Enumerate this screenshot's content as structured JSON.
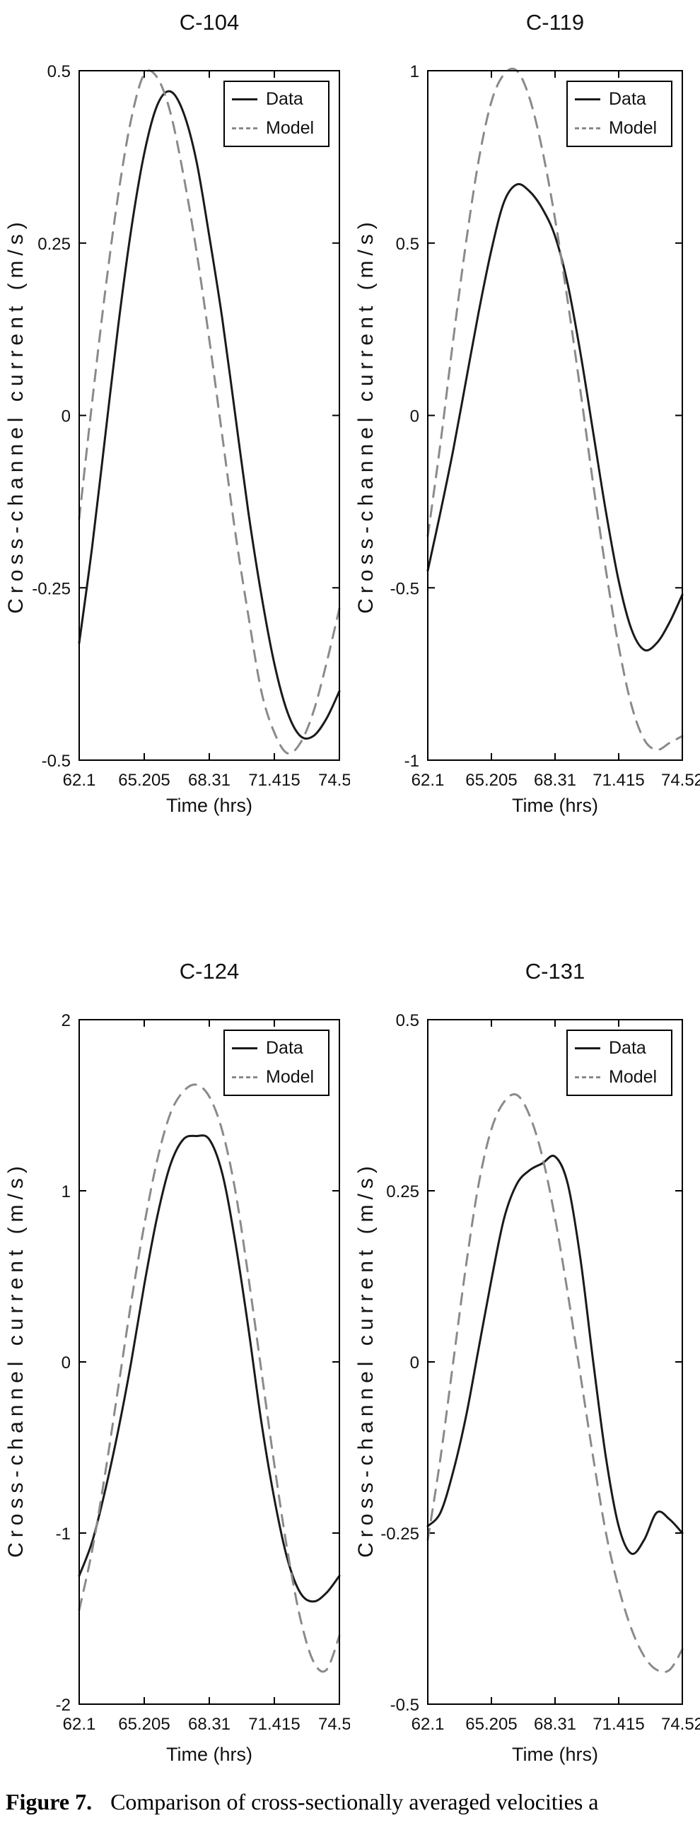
{
  "caption": {
    "label": "Figure 7.",
    "text": "Comparison of cross-sectionally averaged velocities a"
  },
  "legend": {
    "entries": [
      "Data",
      "Model"
    ],
    "position": "top-right"
  },
  "colors": {
    "data_line": "#1a1a1a",
    "model_line": "#8a8a8a",
    "axis": "#000000"
  },
  "chart_data": [
    {
      "type": "line",
      "title": "C-104",
      "xlabel": "Time (hrs)",
      "ylabel": "Cross-channel current (m/s)",
      "xlim": [
        62.1,
        74.52
      ],
      "ylim": [
        -0.5,
        0.5
      ],
      "xticks": [
        62.1,
        65.205,
        68.31,
        71.415,
        74.52
      ],
      "xtick_labels": [
        "62.1",
        "65.205",
        "68.31",
        "71.415",
        "74.52"
      ],
      "yticks": [
        -0.5,
        -0.25,
        0,
        0.25,
        0.5
      ],
      "ytick_labels": [
        "-0.5",
        "-0.25",
        "0",
        "0.25",
        "0.5"
      ],
      "grid": false,
      "legend_position": "top-right",
      "x": [
        62.1,
        62.721,
        63.342,
        63.963,
        64.584,
        65.205,
        65.826,
        66.447,
        67.068,
        67.689,
        68.31,
        68.931,
        69.552,
        70.173,
        70.794,
        71.415,
        72.036,
        72.657,
        73.278,
        73.899,
        74.52
      ],
      "series": [
        {
          "name": "Data",
          "style": "solid",
          "color": "#1a1a1a",
          "values": [
            -0.33,
            -0.19,
            -0.03,
            0.13,
            0.27,
            0.38,
            0.45,
            0.47,
            0.44,
            0.37,
            0.26,
            0.14,
            0.0,
            -0.14,
            -0.26,
            -0.36,
            -0.43,
            -0.465,
            -0.465,
            -0.44,
            -0.4
          ]
        },
        {
          "name": "Model",
          "style": "dashed",
          "color": "#8a8a8a",
          "values": [
            -0.15,
            0.02,
            0.18,
            0.32,
            0.43,
            0.495,
            0.49,
            0.44,
            0.35,
            0.24,
            0.11,
            -0.03,
            -0.17,
            -0.29,
            -0.4,
            -0.46,
            -0.49,
            -0.475,
            -0.43,
            -0.36,
            -0.28
          ]
        }
      ]
    },
    {
      "type": "line",
      "title": "C-119",
      "xlabel": "Time (hrs)",
      "ylabel": "Cross-channel current (m/s)",
      "xlim": [
        62.1,
        74.52
      ],
      "ylim": [
        -1,
        1
      ],
      "xticks": [
        62.1,
        65.205,
        68.31,
        71.415,
        74.52
      ],
      "xtick_labels": [
        "62.1",
        "65.205",
        "68.31",
        "71.415",
        "74.52"
      ],
      "yticks": [
        -1,
        -0.5,
        0,
        0.5,
        1
      ],
      "ytick_labels": [
        "-1",
        "-0.5",
        "0",
        "0.5",
        "1"
      ],
      "grid": false,
      "legend_position": "top-right",
      "x": [
        62.1,
        62.721,
        63.342,
        63.963,
        64.584,
        65.205,
        65.826,
        66.447,
        67.068,
        67.689,
        68.31,
        68.931,
        69.552,
        70.173,
        70.794,
        71.415,
        72.036,
        72.657,
        73.278,
        73.899,
        74.52
      ],
      "series": [
        {
          "name": "Data",
          "style": "solid",
          "color": "#1a1a1a",
          "values": [
            -0.45,
            -0.28,
            -0.1,
            0.1,
            0.3,
            0.48,
            0.62,
            0.67,
            0.65,
            0.6,
            0.52,
            0.38,
            0.18,
            -0.05,
            -0.28,
            -0.48,
            -0.62,
            -0.68,
            -0.66,
            -0.6,
            -0.52
          ]
        },
        {
          "name": "Model",
          "style": "dashed",
          "color": "#8a8a8a",
          "values": [
            -0.35,
            -0.08,
            0.22,
            0.5,
            0.74,
            0.91,
            0.99,
            1.0,
            0.92,
            0.77,
            0.57,
            0.33,
            0.07,
            -0.2,
            -0.45,
            -0.67,
            -0.84,
            -0.94,
            -0.97,
            -0.95,
            -0.93
          ]
        }
      ]
    },
    {
      "type": "line",
      "title": "C-124",
      "xlabel": "Time (hrs)",
      "ylabel": "Cross-channel current (m/s)",
      "xlim": [
        62.1,
        74.52
      ],
      "ylim": [
        -2,
        2
      ],
      "xticks": [
        62.1,
        65.205,
        68.31,
        71.415,
        74.52
      ],
      "xtick_labels": [
        "62.1",
        "65.205",
        "68.31",
        "71.415",
        "74.52"
      ],
      "yticks": [
        -2,
        -1,
        0,
        1,
        2
      ],
      "ytick_labels": [
        "-2",
        "-1",
        "0",
        "1",
        "2"
      ],
      "grid": false,
      "legend_position": "top-right",
      "x": [
        62.1,
        62.721,
        63.342,
        63.963,
        64.584,
        65.205,
        65.826,
        66.447,
        67.068,
        67.689,
        68.31,
        68.931,
        69.552,
        70.173,
        70.794,
        71.415,
        72.036,
        72.657,
        73.278,
        73.899,
        74.52
      ],
      "series": [
        {
          "name": "Data",
          "style": "solid",
          "color": "#1a1a1a",
          "values": [
            -1.25,
            -1.05,
            -0.75,
            -0.4,
            0.0,
            0.45,
            0.85,
            1.15,
            1.3,
            1.32,
            1.3,
            1.1,
            0.7,
            0.2,
            -0.35,
            -0.8,
            -1.15,
            -1.35,
            -1.4,
            -1.35,
            -1.25
          ]
        },
        {
          "name": "Model",
          "style": "dashed",
          "color": "#8a8a8a",
          "values": [
            -1.45,
            -1.1,
            -0.65,
            -0.15,
            0.35,
            0.8,
            1.18,
            1.45,
            1.58,
            1.62,
            1.55,
            1.35,
            1.0,
            0.5,
            -0.05,
            -0.6,
            -1.1,
            -1.5,
            -1.75,
            -1.8,
            -1.6
          ]
        }
      ]
    },
    {
      "type": "line",
      "title": "C-131",
      "xlabel": "Time (hrs)",
      "ylabel": "Cross-channel current (m/s)",
      "xlim": [
        62.1,
        74.52
      ],
      "ylim": [
        -0.5,
        0.5
      ],
      "xticks": [
        62.1,
        65.205,
        68.31,
        71.415,
        74.52
      ],
      "xtick_labels": [
        "62.1",
        "65.205",
        "68.31",
        "71.415",
        "74.52"
      ],
      "yticks": [
        -0.5,
        -0.25,
        0,
        0.25,
        0.5
      ],
      "ytick_labels": [
        "-0.5",
        "-0.25",
        "0",
        "0.25",
        "0.5"
      ],
      "grid": false,
      "legend_position": "top-right",
      "x": [
        62.1,
        62.721,
        63.342,
        63.963,
        64.584,
        65.205,
        65.826,
        66.447,
        67.068,
        67.689,
        68.31,
        68.931,
        69.552,
        70.173,
        70.794,
        71.415,
        72.036,
        72.657,
        73.278,
        73.899,
        74.52
      ],
      "series": [
        {
          "name": "Data",
          "style": "solid",
          "color": "#1a1a1a",
          "values": [
            -0.24,
            -0.22,
            -0.16,
            -0.08,
            0.02,
            0.12,
            0.21,
            0.26,
            0.28,
            0.29,
            0.3,
            0.26,
            0.15,
            0.0,
            -0.14,
            -0.24,
            -0.28,
            -0.26,
            -0.22,
            -0.23,
            -0.25
          ]
        },
        {
          "name": "Model",
          "style": "dashed",
          "color": "#8a8a8a",
          "values": [
            -0.26,
            -0.14,
            0.0,
            0.14,
            0.26,
            0.34,
            0.38,
            0.39,
            0.36,
            0.3,
            0.21,
            0.1,
            -0.02,
            -0.14,
            -0.25,
            -0.33,
            -0.39,
            -0.43,
            -0.45,
            -0.45,
            -0.42
          ]
        }
      ]
    }
  ]
}
